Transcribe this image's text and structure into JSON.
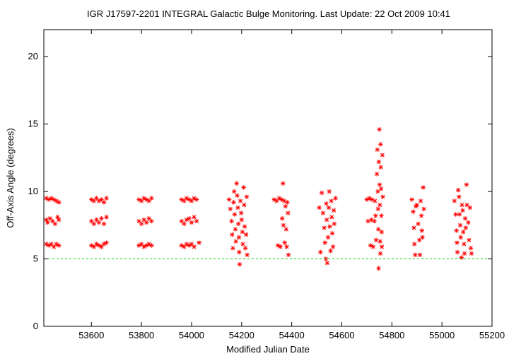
{
  "chart_data": {
    "type": "scatter",
    "title": "IGR J17597-2201   INTEGRAL Galactic Bulge Monitoring.  Last Update: 22 Oct 2009 10:41",
    "xlabel": "Modified Julian Date",
    "ylabel": "Off-Axis Angle (degrees)",
    "xlim": [
      53410,
      55200
    ],
    "ylim": [
      0,
      22
    ],
    "xticks": [
      53600,
      53800,
      54000,
      54200,
      54400,
      54600,
      54800,
      55000,
      55200
    ],
    "yticks": [
      0,
      5,
      10,
      15,
      20
    ],
    "grid": false,
    "legend": "none",
    "colors": {
      "points": "#ff0000",
      "reference_line": "#00cc00",
      "axes": "#000000"
    },
    "reference_line": {
      "y": 5,
      "style": "dashed"
    },
    "series": [
      {
        "marker": "asterisk",
        "points": [
          [
            53420,
            9.5
          ],
          [
            53430,
            9.4
          ],
          [
            53440,
            9.5
          ],
          [
            53450,
            9.4
          ],
          [
            53460,
            9.3
          ],
          [
            53470,
            9.2
          ],
          [
            53420,
            7.9
          ],
          [
            53425,
            7.7
          ],
          [
            53435,
            8.0
          ],
          [
            53445,
            7.8
          ],
          [
            53455,
            7.6
          ],
          [
            53465,
            8.1
          ],
          [
            53470,
            7.9
          ],
          [
            53420,
            6.1
          ],
          [
            53430,
            6.0
          ],
          [
            53440,
            6.1
          ],
          [
            53450,
            5.9
          ],
          [
            53460,
            6.1
          ],
          [
            53470,
            6.0
          ],
          [
            53600,
            9.4
          ],
          [
            53610,
            9.3
          ],
          [
            53620,
            9.5
          ],
          [
            53630,
            9.3
          ],
          [
            53640,
            9.4
          ],
          [
            53650,
            9.2
          ],
          [
            53660,
            9.5
          ],
          [
            53600,
            7.8
          ],
          [
            53610,
            7.6
          ],
          [
            53620,
            7.9
          ],
          [
            53630,
            7.7
          ],
          [
            53640,
            8.0
          ],
          [
            53650,
            7.6
          ],
          [
            53660,
            8.1
          ],
          [
            53600,
            6.0
          ],
          [
            53610,
            5.9
          ],
          [
            53620,
            6.1
          ],
          [
            53630,
            6.0
          ],
          [
            53640,
            5.9
          ],
          [
            53650,
            6.1
          ],
          [
            53660,
            6.2
          ],
          [
            53790,
            9.4
          ],
          [
            53800,
            9.3
          ],
          [
            53810,
            9.5
          ],
          [
            53820,
            9.4
          ],
          [
            53830,
            9.3
          ],
          [
            53840,
            9.5
          ],
          [
            53790,
            7.8
          ],
          [
            53800,
            7.6
          ],
          [
            53810,
            7.9
          ],
          [
            53820,
            7.7
          ],
          [
            53830,
            8.0
          ],
          [
            53840,
            7.8
          ],
          [
            53790,
            6.0
          ],
          [
            53800,
            6.1
          ],
          [
            53810,
            5.9
          ],
          [
            53820,
            6.0
          ],
          [
            53830,
            6.1
          ],
          [
            53840,
            6.0
          ],
          [
            53960,
            9.4
          ],
          [
            53970,
            9.3
          ],
          [
            53980,
            9.5
          ],
          [
            53990,
            9.4
          ],
          [
            54000,
            9.3
          ],
          [
            54010,
            9.5
          ],
          [
            54020,
            9.4
          ],
          [
            53960,
            7.8
          ],
          [
            53970,
            7.6
          ],
          [
            53980,
            7.9
          ],
          [
            53990,
            8.0
          ],
          [
            54000,
            7.7
          ],
          [
            54010,
            8.1
          ],
          [
            54020,
            7.8
          ],
          [
            53960,
            6.0
          ],
          [
            53970,
            5.9
          ],
          [
            53980,
            6.1
          ],
          [
            53990,
            6.0
          ],
          [
            54000,
            6.1
          ],
          [
            54010,
            5.9
          ],
          [
            54030,
            6.2
          ],
          [
            54150,
            9.4
          ],
          [
            54155,
            8.7
          ],
          [
            54160,
            7.8
          ],
          [
            54162,
            6.8
          ],
          [
            54165,
            5.8
          ],
          [
            54168,
            9.2
          ],
          [
            54170,
            10.0
          ],
          [
            54172,
            8.3
          ],
          [
            54175,
            7.2
          ],
          [
            54177,
            6.3
          ],
          [
            54180,
            10.6
          ],
          [
            54182,
            9.7
          ],
          [
            54185,
            8.8
          ],
          [
            54187,
            7.6
          ],
          [
            54189,
            6.6
          ],
          [
            54190,
            5.5
          ],
          [
            54192,
            4.6
          ],
          [
            54195,
            9.3
          ],
          [
            54198,
            8.4
          ],
          [
            54200,
            7.9
          ],
          [
            54203,
            7.0
          ],
          [
            54205,
            6.1
          ],
          [
            54208,
            10.3
          ],
          [
            54210,
            9.0
          ],
          [
            54212,
            7.4
          ],
          [
            54215,
            5.8
          ],
          [
            54218,
            6.8
          ],
          [
            54220,
            9.6
          ],
          [
            54222,
            5.3
          ],
          [
            54330,
            9.4
          ],
          [
            54340,
            9.3
          ],
          [
            54345,
            6.0
          ],
          [
            54350,
            9.5
          ],
          [
            54355,
            5.9
          ],
          [
            54360,
            9.4
          ],
          [
            54362,
            8.0
          ],
          [
            54365,
            10.6
          ],
          [
            54367,
            7.5
          ],
          [
            54370,
            9.3
          ],
          [
            54372,
            6.2
          ],
          [
            54375,
            8.9
          ],
          [
            54378,
            7.2
          ],
          [
            54380,
            5.9
          ],
          [
            54382,
            9.2
          ],
          [
            54385,
            8.4
          ],
          [
            54387,
            5.3
          ],
          [
            54510,
            8.8
          ],
          [
            54515,
            5.5
          ],
          [
            54520,
            9.9
          ],
          [
            54525,
            8.4
          ],
          [
            54530,
            7.3
          ],
          [
            54533,
            6.2
          ],
          [
            54536,
            5.0
          ],
          [
            54538,
            9.1
          ],
          [
            54540,
            7.9
          ],
          [
            54542,
            4.7
          ],
          [
            54545,
            6.6
          ],
          [
            54548,
            8.8
          ],
          [
            54550,
            10.0
          ],
          [
            54552,
            7.4
          ],
          [
            54555,
            5.6
          ],
          [
            54558,
            9.3
          ],
          [
            54560,
            8.1
          ],
          [
            54562,
            6.9
          ],
          [
            54565,
            5.9
          ],
          [
            54568,
            8.6
          ],
          [
            54570,
            7.6
          ],
          [
            54575,
            9.5
          ],
          [
            54700,
            9.4
          ],
          [
            54705,
            7.8
          ],
          [
            54710,
            9.5
          ],
          [
            54715,
            6.0
          ],
          [
            54718,
            7.9
          ],
          [
            54720,
            9.4
          ],
          [
            54725,
            5.9
          ],
          [
            54730,
            7.8
          ],
          [
            54732,
            9.3
          ],
          [
            54735,
            8.2
          ],
          [
            54737,
            6.4
          ],
          [
            54740,
            11.3
          ],
          [
            54742,
            13.1
          ],
          [
            54744,
            10.0
          ],
          [
            54745,
            8.7
          ],
          [
            54746,
            7.2
          ],
          [
            54747,
            4.3
          ],
          [
            54748,
            12.2
          ],
          [
            54750,
            14.6
          ],
          [
            54751,
            10.5
          ],
          [
            54752,
            9.0
          ],
          [
            54753,
            6.3
          ],
          [
            54754,
            5.4
          ],
          [
            54755,
            13.5
          ],
          [
            54756,
            11.8
          ],
          [
            54757,
            10.2
          ],
          [
            54758,
            8.2
          ],
          [
            54759,
            7.0
          ],
          [
            54760,
            5.9
          ],
          [
            54762,
            12.7
          ],
          [
            54764,
            9.6
          ],
          [
            54880,
            9.4
          ],
          [
            54885,
            8.5
          ],
          [
            54888,
            7.3
          ],
          [
            54890,
            6.1
          ],
          [
            54893,
            5.3
          ],
          [
            54896,
            8.9
          ],
          [
            54900,
            9.0
          ],
          [
            54905,
            7.6
          ],
          [
            54910,
            6.4
          ],
          [
            54912,
            5.3
          ],
          [
            54915,
            9.3
          ],
          [
            54918,
            8.2
          ],
          [
            54920,
            7.1
          ],
          [
            54922,
            6.6
          ],
          [
            54925,
            10.3
          ],
          [
            54928,
            8.7
          ],
          [
            55050,
            9.3
          ],
          [
            55055,
            8.3
          ],
          [
            55058,
            7.1
          ],
          [
            55060,
            6.2
          ],
          [
            55062,
            5.5
          ],
          [
            55065,
            10.1
          ],
          [
            55068,
            9.6
          ],
          [
            55070,
            8.3
          ],
          [
            55073,
            7.5
          ],
          [
            55075,
            6.6
          ],
          [
            55078,
            5.1
          ],
          [
            55080,
            9.0
          ],
          [
            55083,
            8.6
          ],
          [
            55085,
            7.0
          ],
          [
            55088,
            6.1
          ],
          [
            55090,
            5.4
          ],
          [
            55093,
            8.0
          ],
          [
            55095,
            7.3
          ],
          [
            55098,
            10.5
          ],
          [
            55100,
            9.0
          ],
          [
            55105,
            7.7
          ],
          [
            55108,
            6.4
          ],
          [
            55112,
            8.8
          ],
          [
            55115,
            5.8
          ],
          [
            55118,
            5.4
          ]
        ]
      }
    ]
  }
}
